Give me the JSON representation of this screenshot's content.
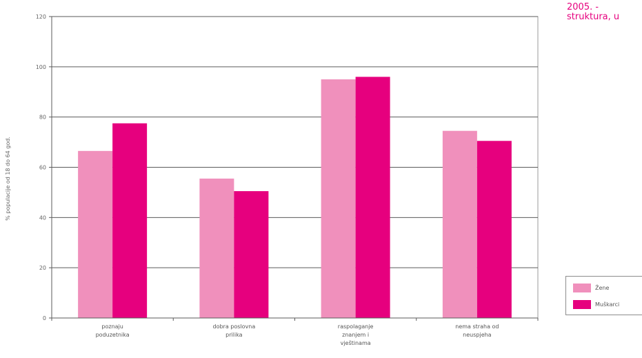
{
  "title_fragment": {
    "line1": "2005. -",
    "line2": "struktura, u"
  },
  "chart_data": {
    "type": "bar",
    "ylabel": "% populacije od 18 do 64 god.",
    "ylim": [
      0,
      120
    ],
    "yticks": [
      0,
      20,
      40,
      60,
      80,
      100,
      120
    ],
    "grid": true,
    "legend_position": "bottom-right",
    "categories": [
      [
        "poznaju",
        "poduzetnika"
      ],
      [
        "dobra poslovna",
        "prilika"
      ],
      [
        "raspolaganje",
        "znanjem i",
        "vještinama"
      ],
      [
        "nema straha od",
        "neuspjeha"
      ]
    ],
    "series": [
      {
        "name": "Žene",
        "color": "#f090bc",
        "values": [
          66.5,
          55.5,
          95,
          74.5
        ]
      },
      {
        "name": "Muškarci",
        "color": "#e6007e",
        "values": [
          77.5,
          50.5,
          96,
          70.5
        ]
      }
    ]
  }
}
